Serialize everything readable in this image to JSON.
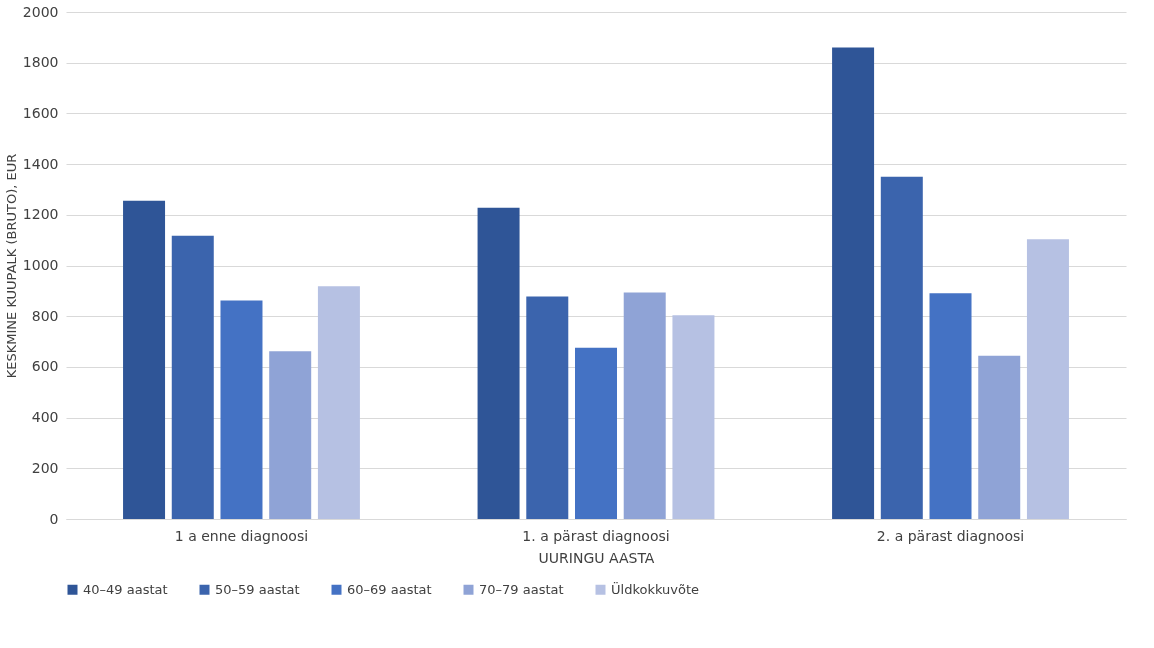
{
  "chart_data": {
    "type": "bar",
    "xlabel": "UURINGU AASTA",
    "ylabel": "KESKMINE KUUPALK (BRUTO), EUR",
    "categories": [
      "1 a enne diagnoosi",
      "1. a pärast diagnoosi",
      "2. a pärast diagnoosi"
    ],
    "series": [
      {
        "name": "40–49 aastat",
        "color": "#2f5597",
        "values": [
          1255,
          1228,
          1860
        ]
      },
      {
        "name": "50–59 aastat",
        "color": "#3b64ad",
        "values": [
          1117,
          878,
          1350
        ]
      },
      {
        "name": "60–69 aastat",
        "color": "#4472c4",
        "values": [
          862,
          676,
          891
        ]
      },
      {
        "name": "70–79 aastat",
        "color": "#8fa3d6",
        "values": [
          662,
          893,
          644
        ]
      },
      {
        "name": "Üldkokkuvõte",
        "color": "#b6c1e3",
        "values": [
          918,
          804,
          1104
        ]
      }
    ],
    "ylim": [
      0,
      2000
    ],
    "yticks": [
      0,
      200,
      400,
      600,
      800,
      1000,
      1200,
      1400,
      1600,
      1800,
      2000
    ],
    "grid": "y",
    "legend": "bottom"
  }
}
